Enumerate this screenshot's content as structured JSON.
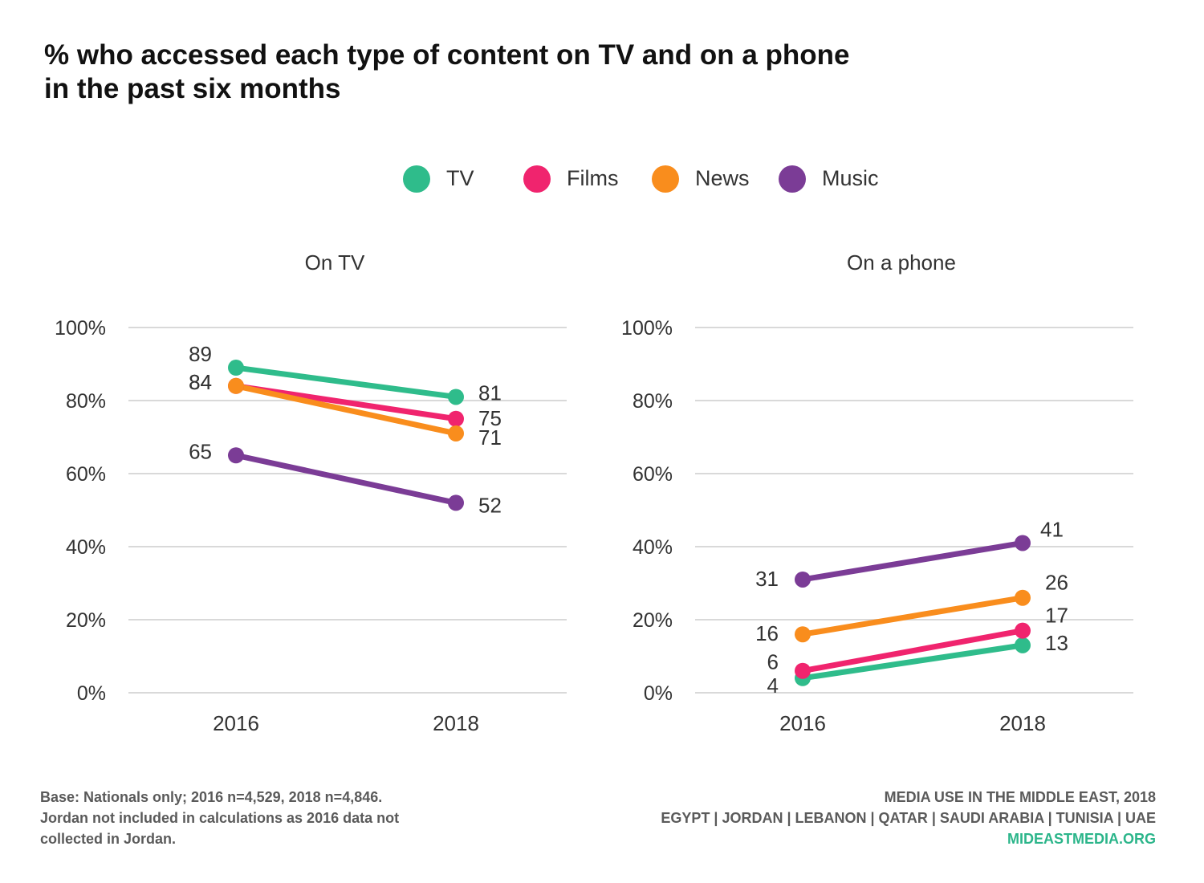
{
  "title": {
    "line1": "% who accessed each type of content on TV and on a phone",
    "line2": "in the past six months"
  },
  "legend": [
    {
      "label": "TV",
      "color": "#2fbc8b"
    },
    {
      "label": "Films",
      "color": "#f0246e"
    },
    {
      "label": "News",
      "color": "#f98d1d"
    },
    {
      "label": "Music",
      "color": "#7b3c96"
    }
  ],
  "chart_data": [
    {
      "type": "line",
      "title": "On TV",
      "x": [
        "2016",
        "2018"
      ],
      "ylim": [
        0,
        100
      ],
      "yticks": [
        "0%",
        "20%",
        "40%",
        "60%",
        "80%",
        "100%"
      ],
      "grid": true,
      "series": [
        {
          "name": "TV",
          "color": "#2fbc8b",
          "values": [
            89,
            81
          ]
        },
        {
          "name": "Films",
          "color": "#f0246e",
          "values": [
            84,
            75
          ]
        },
        {
          "name": "News",
          "color": "#f98d1d",
          "values": [
            84,
            71
          ]
        },
        {
          "name": "Music",
          "color": "#7b3c96",
          "values": [
            65,
            52
          ]
        }
      ]
    },
    {
      "type": "line",
      "title": "On a phone",
      "x": [
        "2016",
        "2018"
      ],
      "ylim": [
        0,
        100
      ],
      "yticks": [
        "0%",
        "20%",
        "40%",
        "60%",
        "80%",
        "100%"
      ],
      "grid": true,
      "series": [
        {
          "name": "TV",
          "color": "#2fbc8b",
          "values": [
            4,
            13
          ]
        },
        {
          "name": "Films",
          "color": "#f0246e",
          "values": [
            6,
            17
          ]
        },
        {
          "name": "News",
          "color": "#f98d1d",
          "values": [
            16,
            26
          ]
        },
        {
          "name": "Music",
          "color": "#7b3c96",
          "values": [
            31,
            41
          ]
        }
      ]
    }
  ],
  "footer": {
    "base_line1": "Base: Nationals only; 2016 n=4,529, 2018 n=4,846.",
    "base_line2": "Jordan not included in calculations as 2016 data not",
    "base_line3": "collected in Jordan.",
    "source_line1": "MEDIA USE IN THE MIDDLE EAST, 2018",
    "source_line2": "EGYPT | JORDAN | LEBANON | QATAR | SAUDI ARABIA | TUNISIA | UAE",
    "source_site": "MIDEASTMEDIA.ORG"
  }
}
